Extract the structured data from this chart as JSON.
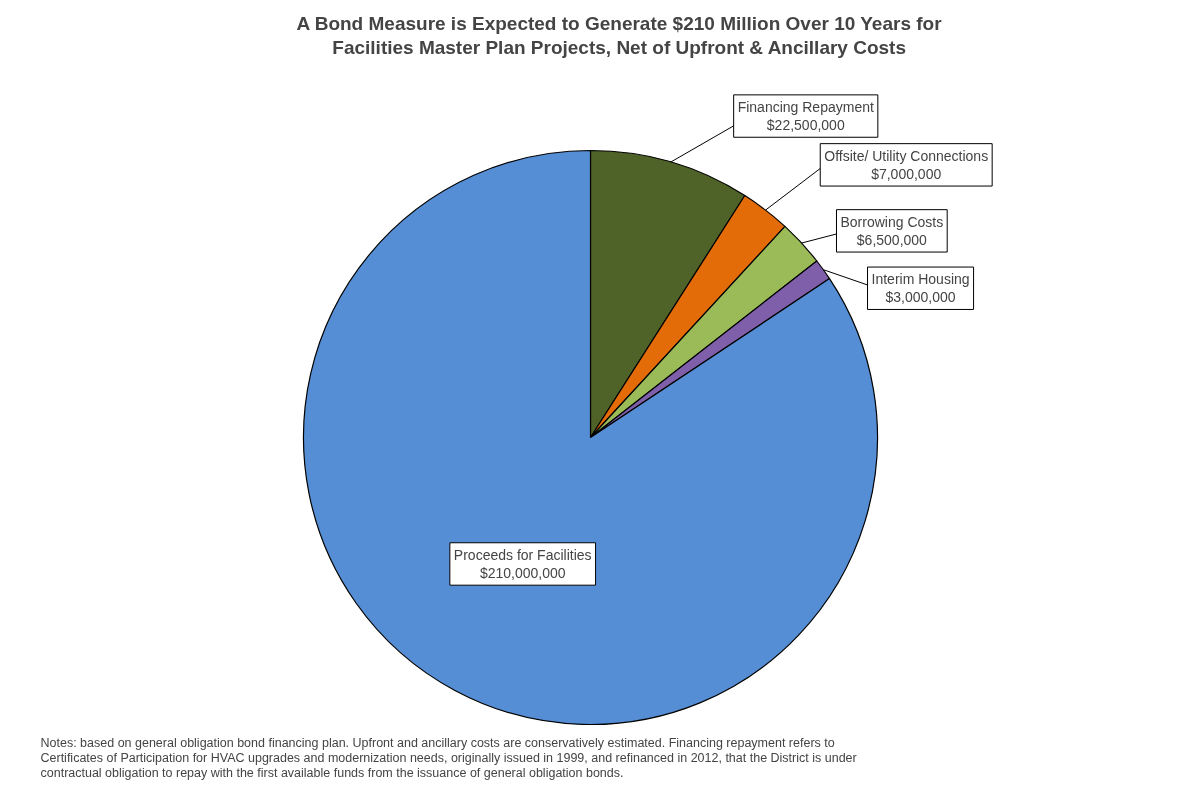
{
  "chart_data": {
    "type": "pie",
    "title": "A Bond Measure is Expected to Generate $210 Million Over 10 Years for Facilities Master Plan Projects, Net of Upfront & Ancillary Costs",
    "categories": [
      "Financing Repayment",
      "Offsite/ Utility Connections",
      "Borrowing Costs",
      "Interim Housing",
      "Proceeds for Facilities"
    ],
    "values": [
      22500000,
      7000000,
      6500000,
      3000000,
      210000000
    ],
    "value_labels": [
      "$22,500,000",
      "$7,000,000",
      "$6,500,000",
      "$3,000,000",
      "$210,000,000"
    ],
    "colors": [
      "#4f6228",
      "#e36c09",
      "#9bbb59",
      "#7f5fa9",
      "#558ed5"
    ],
    "annotations": [
      "Notes: based on general obligation bond financing plan.  Upfront and ancillary costs are conservatively estimated.  Financing repayment refers to Certificates of Participation for HVAC upgrades and modernization needs, originally issued in 1999, and refinanced in 2012, that the District is under contractual obligation to repay with the first available funds from the issuance of general obligation bonds."
    ]
  }
}
